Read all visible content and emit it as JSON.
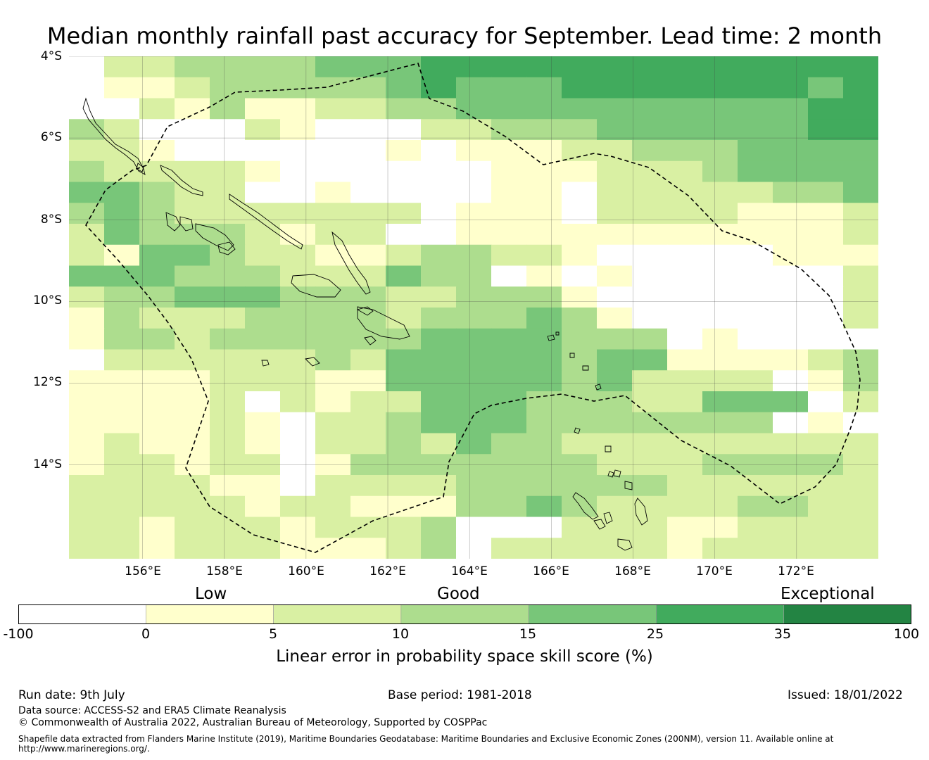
{
  "title": "Median monthly rainfall past accuracy for September. Lead time: 2 month",
  "map": {
    "lat_labels": [
      "4°S",
      "6°S",
      "8°S",
      "10°S",
      "12°S",
      "14°S"
    ],
    "lon_labels": [
      "156°E",
      "158°E",
      "160°E",
      "162°E",
      "164°E",
      "166°E",
      "168°E",
      "170°E",
      "172°E"
    ],
    "lon_range": [
      154.2,
      174.0
    ],
    "lat_range": [
      -4.0,
      -16.3
    ],
    "grid": true,
    "colors": [
      "#ffffff",
      "#ffffcc",
      "#d9f0a3",
      "#addd8e",
      "#78c679",
      "#41ab5d",
      "#238443"
    ]
  },
  "colorbar": {
    "tiers": [
      "Low",
      "Good",
      "Exceptional"
    ],
    "ticks": [
      "-100",
      "0",
      "5",
      "10",
      "15",
      "25",
      "35",
      "100"
    ],
    "label": "Linear error in probability space skill score (%)",
    "colors": [
      "#ffffff",
      "#ffffcc",
      "#d9f0a3",
      "#addd8e",
      "#78c679",
      "#41ab5d",
      "#238443"
    ]
  },
  "footer": {
    "run_date": "Run date: 9th July",
    "base_period": "Base period: 1981-2018",
    "issued": "Issued: 18/01/2022",
    "data_source": "Data source: ACCESS-S2 and ERA5 Climate Reanalysis",
    "copyright": "© Commonwealth of Australia 2022, Australian Bureau of Meteorology, Supported by COSPPac",
    "shapefile": "Shapefile data extracted from Flanders Marine Institute (2019), Maritime Boundaries Geodatabase: Maritime Boundaries and Exclusive Economic Zones (200NM), version 11. Available online at http://www.marineregions.org/."
  }
}
